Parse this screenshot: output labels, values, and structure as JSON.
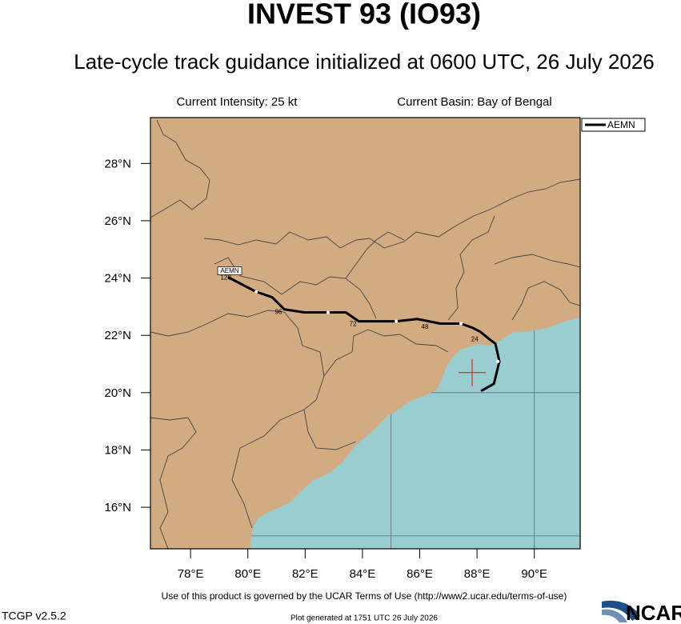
{
  "chart_data": {
    "type": "track-map",
    "title": "INVEST 93 (IO93)",
    "subtitle": "Late-cycle track guidance initialized at 0600 UTC, 26 July 2026",
    "current_intensity": "Current Intensity: 25 kt",
    "current_basin": "Current Basin: Bay of Bengal",
    "xlim": [
      76.6,
      91.6
    ],
    "ylim": [
      14.55,
      29.6
    ],
    "xticks": [
      {
        "value": 78,
        "label": "78°E"
      },
      {
        "value": 80,
        "label": "80°E"
      },
      {
        "value": 82,
        "label": "82°E"
      },
      {
        "value": 84,
        "label": "84°E"
      },
      {
        "value": 86,
        "label": "86°E"
      },
      {
        "value": 88,
        "label": "88°E"
      },
      {
        "value": 90,
        "label": "90°E"
      }
    ],
    "yticks": [
      {
        "value": 16,
        "label": "16°N"
      },
      {
        "value": 18,
        "label": "18°N"
      },
      {
        "value": 20,
        "label": "20°N"
      },
      {
        "value": 22,
        "label": "22°N"
      },
      {
        "value": 24,
        "label": "24°N"
      },
      {
        "value": 26,
        "label": "26°N"
      },
      {
        "value": 28,
        "label": "28°N"
      }
    ],
    "grid_lon": [
      85,
      90
    ],
    "grid_lat": [
      15,
      20
    ],
    "land_color": "#d2ab82",
    "ocean_color": "#99cdd0",
    "legend": "upper-right",
    "current_position": {
      "lon": 87.83,
      "lat": 20.7,
      "color": "#ff0000"
    },
    "series": [
      {
        "name": "AEMN",
        "color": "#000000",
        "lon": [
          88.14,
          88.59,
          88.78,
          88.64,
          88.45,
          88.11,
          87.83,
          87.44,
          86.72,
          85.91,
          85.18,
          83.87,
          83.42,
          82.8,
          81.97,
          81.27,
          80.85,
          80.29,
          79.31
        ],
        "lat": [
          20.06,
          20.31,
          21.09,
          21.71,
          21.85,
          22.13,
          22.27,
          22.41,
          22.41,
          22.57,
          22.49,
          22.49,
          22.8,
          22.8,
          22.8,
          22.91,
          23.33,
          23.52,
          24.03
        ]
      }
    ],
    "track_markers": {
      "lon": [
        88.73,
        87.44,
        85.18,
        82.8,
        80.29
      ],
      "lat": [
        21.09,
        22.41,
        22.49,
        22.8,
        23.52
      ]
    },
    "hour_labels": [
      {
        "hour": 24,
        "lon": 87.92,
        "lat": 21.85
      },
      {
        "hour": 48,
        "lon": 86.18,
        "lat": 22.29
      },
      {
        "hour": 72,
        "lon": 83.67,
        "lat": 22.38
      },
      {
        "hour": 96,
        "lon": 81.07,
        "lat": 22.8
      },
      {
        "hour": 120,
        "lon": 79.23,
        "lat": 24.0
      }
    ]
  },
  "footer": {
    "terms": "Use of this product is governed by the UCAR Terms of Use (http://www2.ucar.edu/terms-of-use)",
    "version": "TCGP v2.5.2",
    "generated": "Plot generated at 1751 UTC  26 July 2026",
    "logo": "NCAR"
  }
}
